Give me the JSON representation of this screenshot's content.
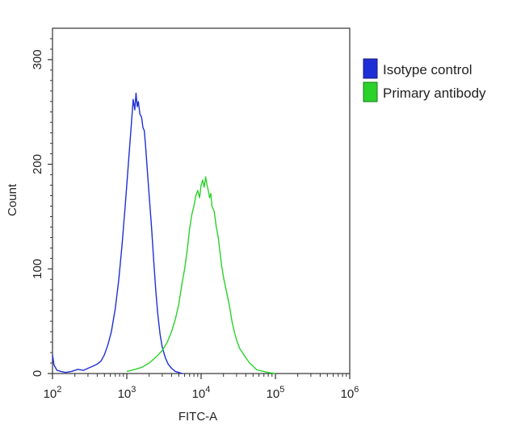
{
  "chart_data": {
    "type": "line",
    "title": "",
    "xlabel": "FITC-A",
    "ylabel": "Count",
    "x_scale": "log",
    "xlim": [
      100,
      1000000
    ],
    "ylim": [
      0,
      330
    ],
    "x_ticks": [
      {
        "value": 100,
        "base": "10",
        "exp": "2"
      },
      {
        "value": 1000,
        "base": "10",
        "exp": "3"
      },
      {
        "value": 10000,
        "base": "10",
        "exp": "4"
      },
      {
        "value": 100000,
        "base": "10",
        "exp": "5"
      },
      {
        "value": 1000000,
        "base": "10",
        "exp": "6"
      }
    ],
    "y_ticks": [
      {
        "value": 0,
        "label": "0"
      },
      {
        "value": 100,
        "label": "100"
      },
      {
        "value": 200,
        "label": "200"
      },
      {
        "value": 300,
        "label": "300"
      }
    ],
    "grid": false,
    "legend_position": "right",
    "series": [
      {
        "name": "Isotype control",
        "color": "#1f2fd6",
        "points": [
          [
            100,
            18
          ],
          [
            105,
            8
          ],
          [
            115,
            3
          ],
          [
            130,
            2
          ],
          [
            150,
            1
          ],
          [
            180,
            2
          ],
          [
            220,
            4
          ],
          [
            260,
            3
          ],
          [
            300,
            5
          ],
          [
            350,
            7
          ],
          [
            400,
            9
          ],
          [
            450,
            12
          ],
          [
            500,
            18
          ],
          [
            560,
            28
          ],
          [
            620,
            40
          ],
          [
            700,
            62
          ],
          [
            780,
            90
          ],
          [
            860,
            122
          ],
          [
            950,
            160
          ],
          [
            1050,
            200
          ],
          [
            1150,
            238
          ],
          [
            1220,
            262
          ],
          [
            1280,
            252
          ],
          [
            1330,
            268
          ],
          [
            1380,
            255
          ],
          [
            1430,
            260
          ],
          [
            1500,
            248
          ],
          [
            1580,
            245
          ],
          [
            1650,
            235
          ],
          [
            1720,
            232
          ],
          [
            1800,
            215
          ],
          [
            1900,
            192
          ],
          [
            2000,
            170
          ],
          [
            2150,
            140
          ],
          [
            2300,
            108
          ],
          [
            2450,
            80
          ],
          [
            2600,
            58
          ],
          [
            2800,
            38
          ],
          [
            3000,
            25
          ],
          [
            3300,
            15
          ],
          [
            3600,
            9
          ],
          [
            4000,
            5
          ],
          [
            4500,
            2
          ],
          [
            5000,
            1
          ],
          [
            5600,
            0
          ]
        ]
      },
      {
        "name": "Primary antibody",
        "color": "#2ad22a",
        "points": [
          [
            1000,
            2
          ],
          [
            1300,
            4
          ],
          [
            1600,
            6
          ],
          [
            2000,
            10
          ],
          [
            2500,
            16
          ],
          [
            3000,
            22
          ],
          [
            3500,
            30
          ],
          [
            4000,
            40
          ],
          [
            4500,
            52
          ],
          [
            5000,
            66
          ],
          [
            5500,
            85
          ],
          [
            6000,
            100
          ],
          [
            6500,
            118
          ],
          [
            7000,
            138
          ],
          [
            7500,
            152
          ],
          [
            8000,
            160
          ],
          [
            8500,
            170
          ],
          [
            9000,
            175
          ],
          [
            9500,
            168
          ],
          [
            10000,
            180
          ],
          [
            10500,
            185
          ],
          [
            11000,
            178
          ],
          [
            11500,
            188
          ],
          [
            12000,
            180
          ],
          [
            12500,
            175
          ],
          [
            13000,
            168
          ],
          [
            13500,
            172
          ],
          [
            14000,
            160
          ],
          [
            15000,
            155
          ],
          [
            16000,
            140
          ],
          [
            17000,
            130
          ],
          [
            18000,
            115
          ],
          [
            19000,
            102
          ],
          [
            20000,
            92
          ],
          [
            22000,
            78
          ],
          [
            24000,
            65
          ],
          [
            26000,
            50
          ],
          [
            28000,
            40
          ],
          [
            30000,
            32
          ],
          [
            33000,
            24
          ],
          [
            36000,
            20
          ],
          [
            40000,
            15
          ],
          [
            45000,
            10
          ],
          [
            50000,
            7
          ],
          [
            55000,
            4
          ],
          [
            60000,
            3
          ],
          [
            70000,
            2
          ],
          [
            80000,
            1
          ],
          [
            100000,
            0
          ]
        ]
      }
    ]
  }
}
